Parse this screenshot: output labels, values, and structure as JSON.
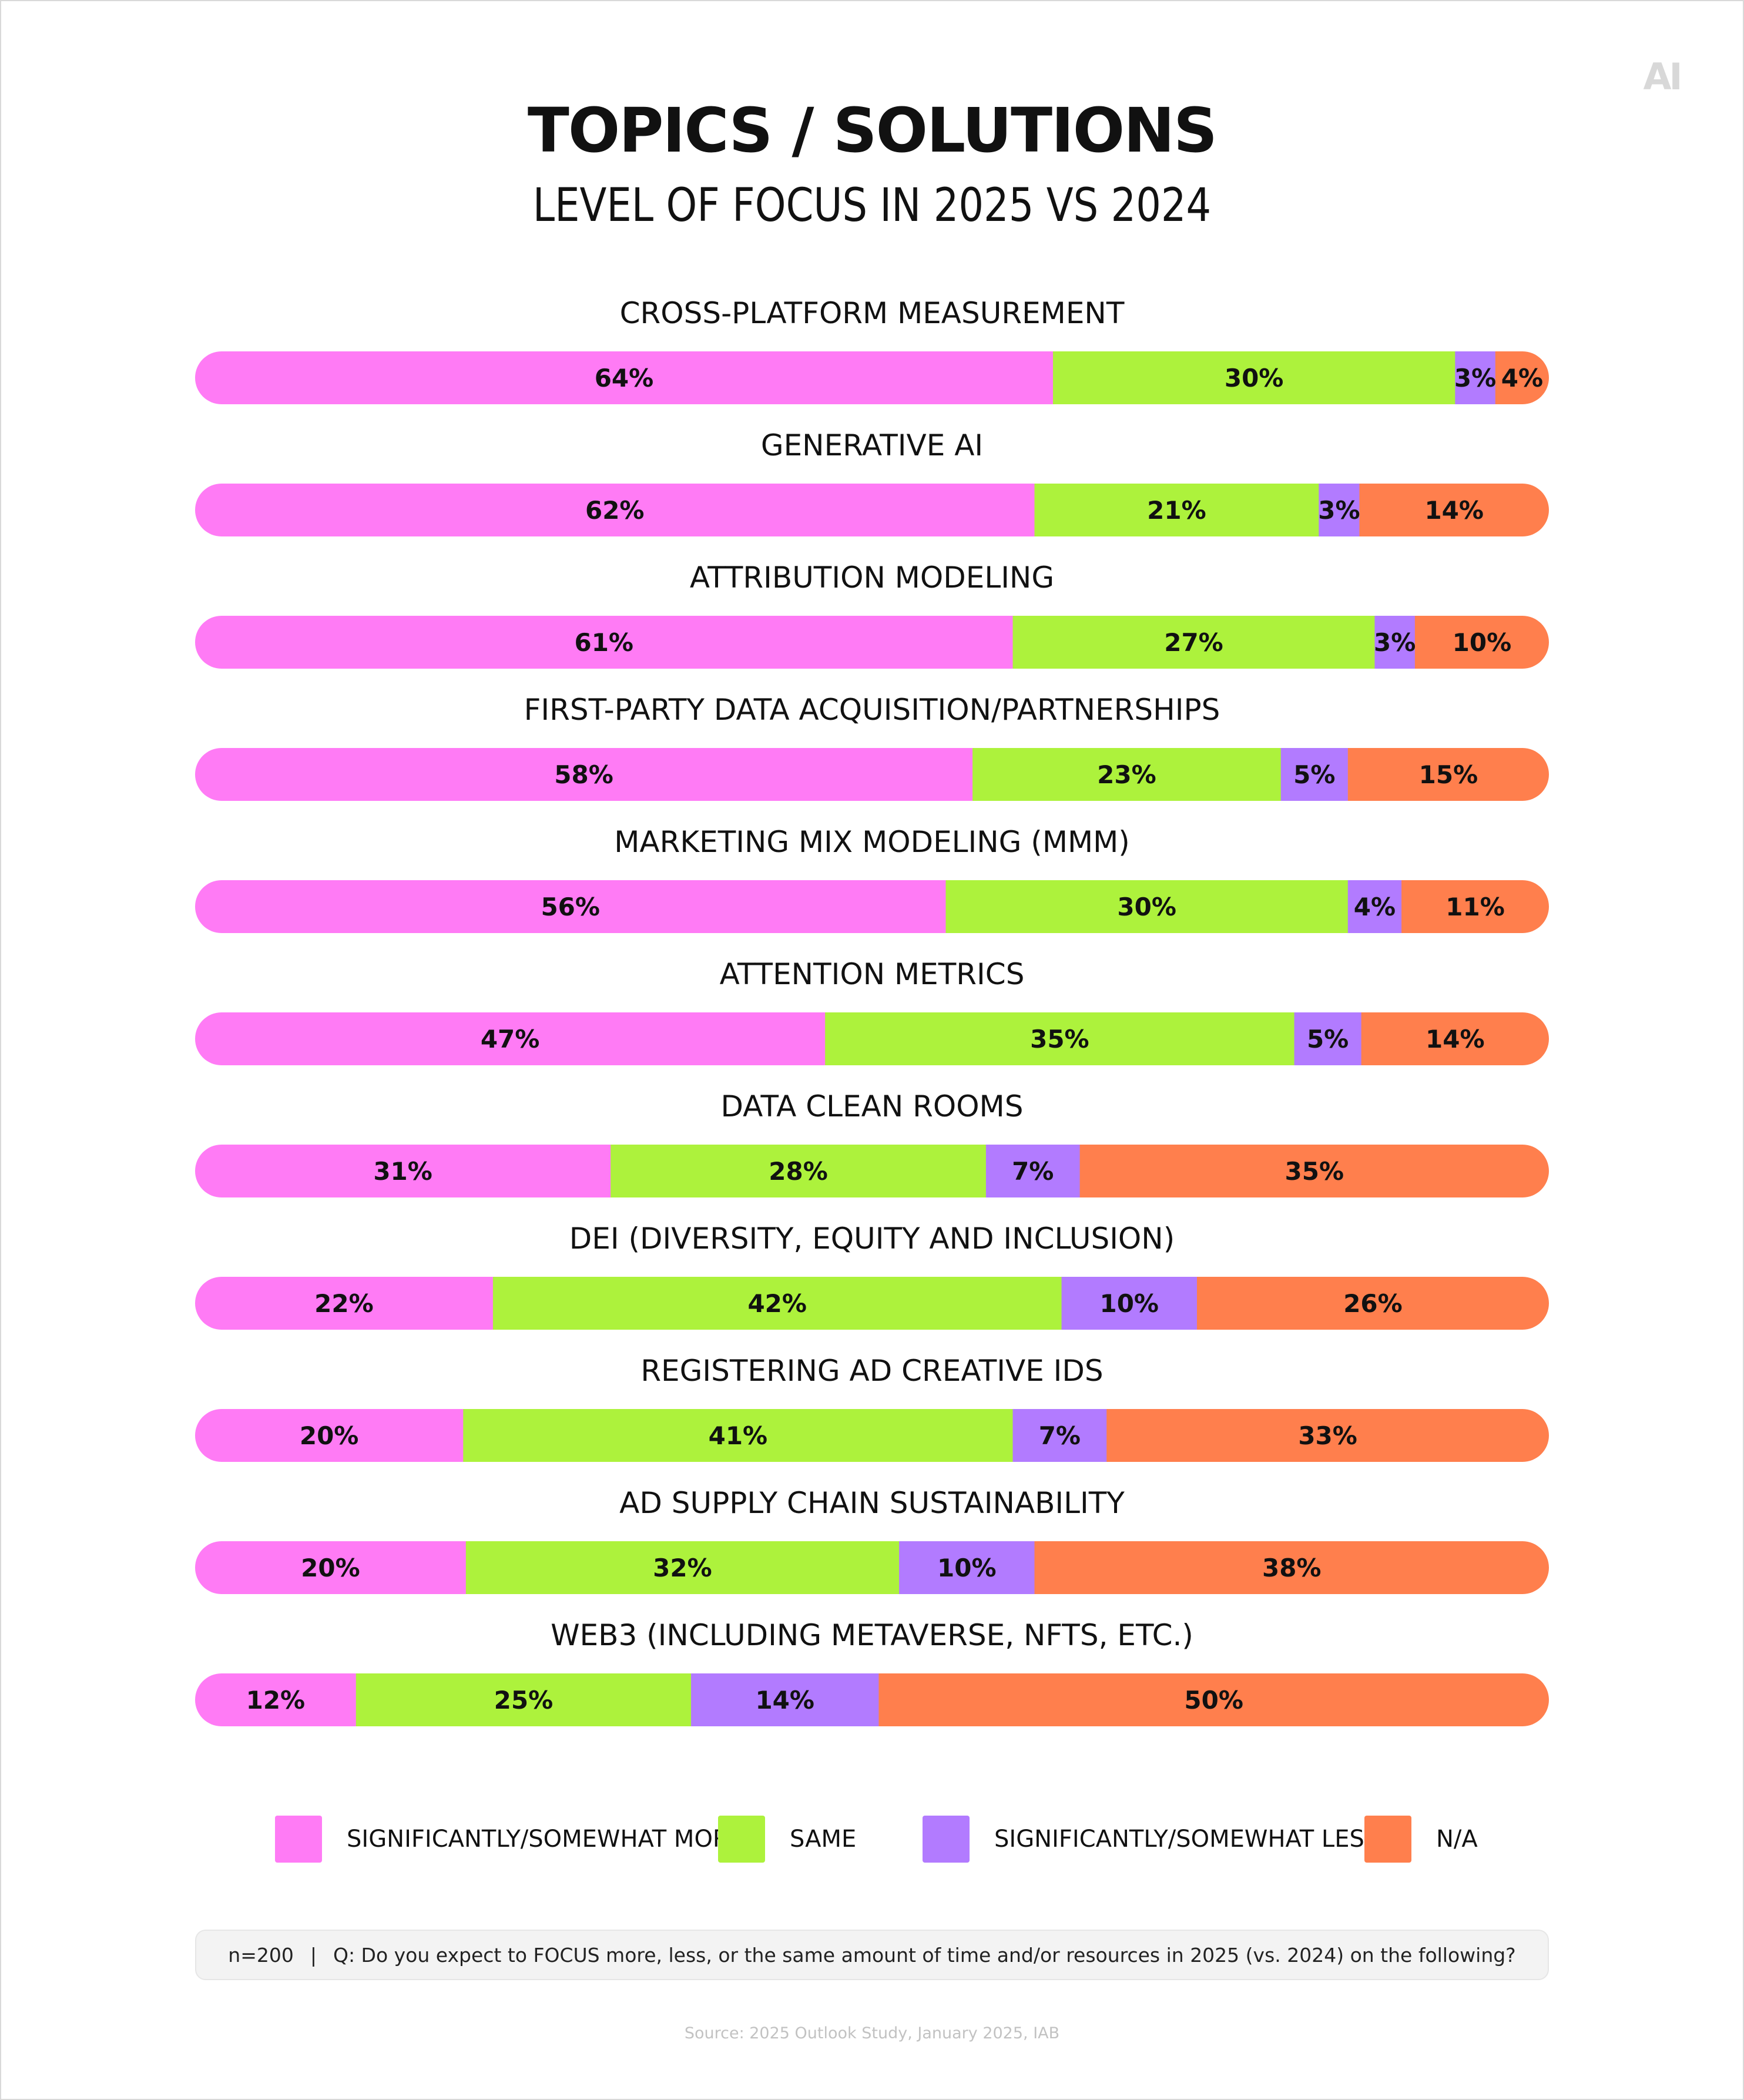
{
  "header": {
    "title": "TOPICS / SOLUTIONS",
    "subtitle": "LEVEL OF FOCUS IN 2025 VS 2024",
    "logo_text": "AI"
  },
  "colors": {
    "more": "#ff7bf5",
    "same": "#adf23c",
    "less": "#b27bff",
    "na": "#ff7f4d"
  },
  "chart_data": {
    "type": "bar",
    "orientation": "horizontal",
    "stacked": true,
    "title": "TOPICS / SOLUTIONS",
    "subtitle": "LEVEL OF FOCUS IN 2025 VS 2024",
    "xlabel": "",
    "ylabel": "",
    "unit": "%",
    "categories": [
      "CROSS-PLATFORM MEASUREMENT",
      "GENERATIVE AI",
      "ATTRIBUTION MODELING",
      "FIRST-PARTY DATA ACQUISITION/PARTNERSHIPS",
      "MARKETING MIX MODELING (MMM)",
      "ATTENTION METRICS",
      "DATA CLEAN ROOMS",
      "DEI (DIVERSITY, EQUITY AND INCLUSION)",
      "REGISTERING AD CREATIVE IDS",
      "AD SUPPLY CHAIN SUSTAINABILITY",
      "WEB3 (INCLUDING METAVERSE, NFTS, ETC.)"
    ],
    "series": [
      {
        "key": "more",
        "name": "SIGNIFICANTLY/SOMEWHAT MORE",
        "values": [
          64,
          62,
          61,
          58,
          56,
          47,
          31,
          22,
          20,
          20,
          12
        ]
      },
      {
        "key": "same",
        "name": "SAME",
        "values": [
          30,
          21,
          27,
          23,
          30,
          35,
          28,
          42,
          41,
          32,
          25
        ]
      },
      {
        "key": "less",
        "name": "SIGNIFICANTLY/SOMEWHAT LESS",
        "values": [
          3,
          3,
          3,
          5,
          4,
          5,
          7,
          10,
          7,
          10,
          14
        ]
      },
      {
        "key": "na",
        "name": "N/A",
        "values": [
          4,
          14,
          10,
          15,
          11,
          14,
          35,
          26,
          33,
          38,
          50
        ]
      }
    ],
    "legend_position": "bottom"
  },
  "footer": {
    "sample": "n=200",
    "separator": "|",
    "question": "Q: Do you expect to FOCUS more, less, or the same amount of time and/or resources in 2025 (vs. 2024) on the following?",
    "source": "Source: 2025 Outlook Study, January 2025, IAB"
  }
}
